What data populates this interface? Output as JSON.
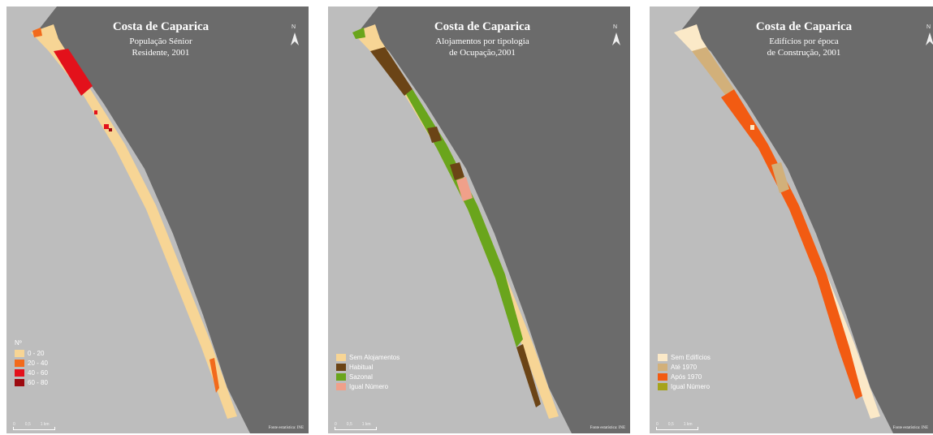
{
  "colors": {
    "land": "#bdbdbd",
    "sea": "#6b6b6b",
    "coastline": "#ffffff"
  },
  "maps": [
    {
      "title": "Costa de Caparica",
      "subtitle_line1": "População Sénior",
      "subtitle_line2": "Residente, 2001",
      "north_label": "N",
      "legend": {
        "heading": "Nº",
        "items": [
          {
            "label": "0 - 20",
            "color": "#f7d595"
          },
          {
            "label": "20 - 40",
            "color": "#f26a1b"
          },
          {
            "label": "40 - 60",
            "color": "#e3111b"
          },
          {
            "label": "60 - 80",
            "color": "#9c0a10"
          }
        ]
      },
      "scale": {
        "labels": [
          "0",
          "0,5",
          "1 km"
        ]
      },
      "source": "Fonte estatística: INE"
    },
    {
      "title": "Costa de Caparica",
      "subtitle_line1": "Alojamentos por tipologia",
      "subtitle_line2": "de Ocupação,2001",
      "north_label": "N",
      "legend": {
        "heading": "",
        "items": [
          {
            "label": "Sem Alojamentos",
            "color": "#f7d595"
          },
          {
            "label": "Habitual",
            "color": "#6b4416"
          },
          {
            "label": "Sazonal",
            "color": "#6aa51c"
          },
          {
            "label": "Igual Número",
            "color": "#f0a08a"
          }
        ]
      },
      "scale": {
        "labels": [
          "0",
          "0,5",
          "1 km"
        ]
      },
      "source": "Fonte estatística: INE"
    },
    {
      "title": "Costa de Caparica",
      "subtitle_line1": "Edifícios por época",
      "subtitle_line2": "de Construção, 2001",
      "north_label": "N",
      "legend": {
        "heading": "",
        "items": [
          {
            "label": "Sem Edifícios",
            "color": "#fbe9c8"
          },
          {
            "label": "Até 1970",
            "color": "#d2b07a"
          },
          {
            "label": "Após 1970",
            "color": "#f25b12"
          },
          {
            "label": "Igual Número",
            "color": "#a6a31b"
          }
        ]
      },
      "scale": {
        "labels": [
          "0",
          "0,5",
          "1 km"
        ]
      },
      "source": "Fonte estatística: INE"
    }
  ]
}
